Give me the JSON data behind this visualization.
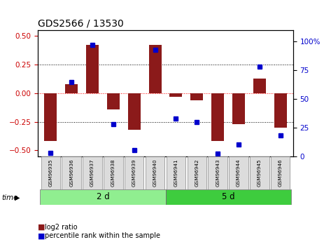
{
  "title": "GDS2566 / 13530",
  "samples": [
    "GSM96935",
    "GSM96936",
    "GSM96937",
    "GSM96938",
    "GSM96939",
    "GSM96940",
    "GSM96941",
    "GSM96942",
    "GSM96943",
    "GSM96944",
    "GSM96945",
    "GSM96946"
  ],
  "log2_ratio": [
    -0.42,
    0.08,
    0.42,
    -0.14,
    -0.32,
    0.42,
    -0.03,
    -0.06,
    -0.42,
    -0.27,
    0.13,
    -0.3
  ],
  "pct_rank": [
    3,
    65,
    97,
    28,
    5,
    93,
    33,
    30,
    2,
    10,
    78,
    18
  ],
  "groups": [
    {
      "label": "2 d",
      "start": 0,
      "end": 6,
      "color": "#90EE90"
    },
    {
      "label": "5 d",
      "start": 6,
      "end": 12,
      "color": "#3ECC3E"
    }
  ],
  "bar_color": "#8B1A1A",
  "dot_color": "#0000CC",
  "ylim_left": [
    -0.55,
    0.55
  ],
  "ylim_right": [
    0,
    110
  ],
  "yticks_left": [
    -0.5,
    -0.25,
    0,
    0.25,
    0.5
  ],
  "yticks_right": [
    0,
    25,
    50,
    75,
    100
  ],
  "hlines_dotted": [
    0.25,
    -0.25
  ],
  "hline_red": 0,
  "bar_width": 0.6,
  "background_color": "#ffffff",
  "title_fontsize": 10,
  "axis_label_color_left": "#CC0000",
  "axis_label_color_right": "#0000CC",
  "legend_items": [
    {
      "label": "log2 ratio",
      "color": "#8B1A1A"
    },
    {
      "label": "percentile rank within the sample",
      "color": "#0000CC"
    }
  ]
}
